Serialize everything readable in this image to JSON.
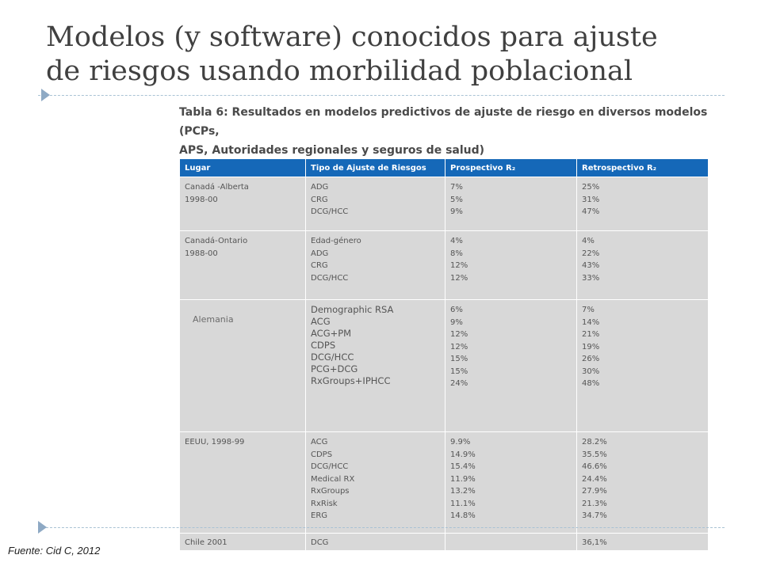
{
  "slide": {
    "title_line1": "Modelos (y software) conocidos para ajuste",
    "title_line2": "de riesgos usando morbilidad poblacional",
    "source": "Fuente: Cid  C, 2012"
  },
  "table": {
    "caption_line1": "Tabla 6: Resultados en modelos predictivos de ajuste de riesgo en diversos modelos (PCPs,",
    "caption_line2": "APS, Autoridades regionales y seguros de salud)",
    "headers": [
      "Lugar",
      "Tipo de Ajuste de Riesgos",
      "Prospectivo R₂",
      "Retrospectivo R₂"
    ],
    "rows": [
      {
        "lugar": [
          "Canadá -Alberta",
          "1998-00"
        ],
        "tipo": [
          "ADG",
          "CRG",
          "DCG/HCC"
        ],
        "prospectivo": [
          "7%",
          "5%",
          "9%"
        ],
        "retrospectivo": [
          "25%",
          "31%",
          "47%"
        ]
      },
      {
        "lugar": [
          "Canadá-Ontario",
          "1988-00"
        ],
        "tipo": [
          "Edad-género",
          "ADG",
          "CRG",
          "DCG/HCC"
        ],
        "prospectivo": [
          "4%",
          "8%",
          "12%",
          "12%"
        ],
        "retrospectivo": [
          "4%",
          "22%",
          "43%",
          "33%"
        ]
      },
      {
        "lugar": [
          "Alemania"
        ],
        "tipo": [
          "Demographic RSA",
          "ACG",
          "ACG+PM",
          "CDPS",
          "DCG/HCC",
          "PCG+DCG",
          "RxGroups+IPHCC"
        ],
        "prospectivo": [
          "6%",
          "9%",
          "12%",
          "12%",
          "15%",
          "15%",
          "24%"
        ],
        "retrospectivo": [
          "7%",
          "14%",
          "21%",
          "19%",
          "26%",
          "30%",
          "48%"
        ]
      },
      {
        "lugar": [
          "EEUU, 1998-99"
        ],
        "tipo": [
          "ACG",
          "CDPS",
          "DCG/HCC",
          "Medical RX",
          "RxGroups",
          "RxRisk",
          "ERG"
        ],
        "prospectivo": [
          "9.9%",
          "14.9%",
          "15.4%",
          "11.9%",
          "13.2%",
          "11.1%",
          "14.8%"
        ],
        "retrospectivo": [
          "28.2%",
          "35.5%",
          "46.6%",
          "24.4%",
          "27.9%",
          "21.3%",
          "34.7%"
        ]
      },
      {
        "lugar": [
          "Chile 2001"
        ],
        "tipo": [
          "DCG"
        ],
        "prospectivo": [],
        "retrospectivo": [
          "36,1%"
        ]
      }
    ]
  },
  "colors": {
    "header_blue": "#1568b8",
    "cell_gray": "#d8d8d8",
    "title_gray": "#404040",
    "bullet": "#8ea9c4"
  }
}
